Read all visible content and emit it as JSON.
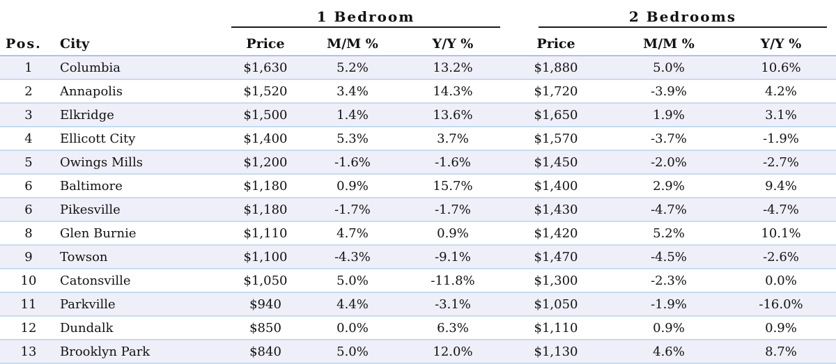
{
  "chart_data": {
    "type": "table",
    "group_headers": [
      "1 Bedroom",
      "2 Bedrooms"
    ],
    "columns": [
      "Pos.",
      "City",
      "Price",
      "M/M %",
      "Y/Y %",
      "Price",
      "M/M %",
      "Y/Y %"
    ],
    "rows": [
      [
        "1",
        "Columbia",
        "$1,630",
        "5.2%",
        "13.2%",
        "$1,880",
        "5.0%",
        "10.6%"
      ],
      [
        "2",
        "Annapolis",
        "$1,520",
        "3.4%",
        "14.3%",
        "$1,720",
        "-3.9%",
        "4.2%"
      ],
      [
        "3",
        "Elkridge",
        "$1,500",
        "1.4%",
        "13.6%",
        "$1,650",
        "1.9%",
        "3.1%"
      ],
      [
        "4",
        "Ellicott City",
        "$1,400",
        "5.3%",
        "3.7%",
        "$1,570",
        "-3.7%",
        "-1.9%"
      ],
      [
        "5",
        "Owings Mills",
        "$1,200",
        "-1.6%",
        "-1.6%",
        "$1,450",
        "-2.0%",
        "-2.7%"
      ],
      [
        "6",
        "Baltimore",
        "$1,180",
        "0.9%",
        "15.7%",
        "$1,400",
        "2.9%",
        "9.4%"
      ],
      [
        "6",
        "Pikesville",
        "$1,180",
        "-1.7%",
        "-1.7%",
        "$1,430",
        "-4.7%",
        "-4.7%"
      ],
      [
        "8",
        "Glen Burnie",
        "$1,110",
        "4.7%",
        "0.9%",
        "$1,420",
        "5.2%",
        "10.1%"
      ],
      [
        "9",
        "Towson",
        "$1,100",
        "-4.3%",
        "-9.1%",
        "$1,470",
        "-4.5%",
        "-2.6%"
      ],
      [
        "10",
        "Catonsville",
        "$1,050",
        "5.0%",
        "-11.8%",
        "$1,300",
        "-2.3%",
        "0.0%"
      ],
      [
        "11",
        "Parkville",
        "$940",
        "4.4%",
        "-3.1%",
        "$1,050",
        "-1.9%",
        "-16.0%"
      ],
      [
        "12",
        "Dundalk",
        "$850",
        "0.0%",
        "6.3%",
        "$1,110",
        "0.9%",
        "0.9%"
      ],
      [
        "13",
        "Brooklyn Park",
        "$840",
        "5.0%",
        "12.0%",
        "$1,130",
        "4.6%",
        "8.7%"
      ]
    ],
    "colors": {
      "row_stripe": "#efeff9",
      "row_rule": "#c7dbef",
      "group_rule": "#1a1a1a"
    }
  }
}
